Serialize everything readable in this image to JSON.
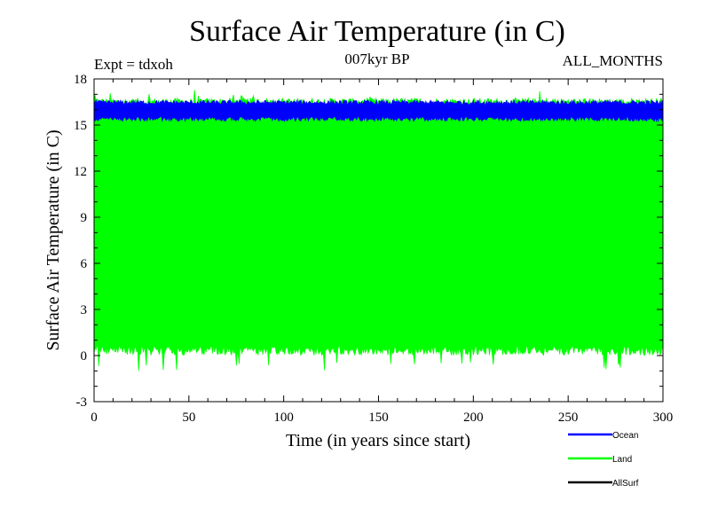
{
  "chart_data": {
    "type": "line",
    "title": "Surface Air Temperature (in C)",
    "subtitle_left": "Expt = tdxoh",
    "subtitle_center": "007kyr BP",
    "subtitle_right": "ALL_MONTHS",
    "xlabel": "Time (in years since start)",
    "ylabel": "Surface Air Temperature (in C)",
    "xlim": [
      0,
      300
    ],
    "ylim": [
      -3,
      18
    ],
    "xticks": [
      0,
      50,
      100,
      150,
      200,
      250,
      300
    ],
    "yticks": [
      -3,
      0,
      3,
      6,
      9,
      12,
      15,
      18
    ],
    "grid": false,
    "legend_position": "bottom-right",
    "series": [
      {
        "name": "Ocean",
        "color": "#0000ff",
        "description_range": [
          15.3,
          16.6
        ],
        "seasonal_min_approx": 15.4,
        "seasonal_max_approx": 16.4
      },
      {
        "name": "Land",
        "color": "#00ff00",
        "seasonal_min_approx": 0.2,
        "seasonal_max_approx": 16.5,
        "extreme_min_approx": -1.0,
        "extreme_max_approx": 17.3
      },
      {
        "name": "AllSurf",
        "color": "#000000",
        "seasonal_min_approx": 15.9,
        "seasonal_max_approx": 16.2
      }
    ]
  }
}
